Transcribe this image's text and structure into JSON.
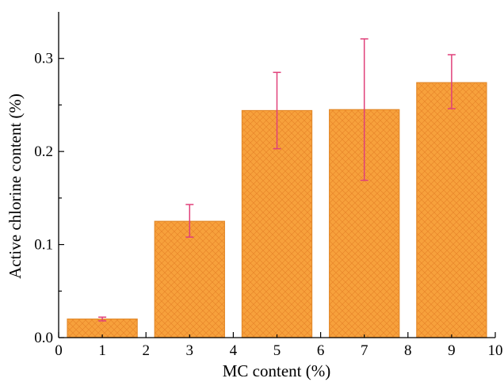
{
  "chart_data": {
    "type": "bar",
    "title": "",
    "xlabel": "MC content (%)",
    "ylabel": "Active chlorine content (%)",
    "xlim": [
      0,
      10
    ],
    "ylim": [
      0,
      0.35
    ],
    "xticks": [
      0,
      1,
      2,
      3,
      4,
      5,
      6,
      7,
      8,
      9,
      10
    ],
    "xtick_labels": [
      "0",
      "1",
      "2",
      "3",
      "4",
      "5",
      "6",
      "7",
      "8",
      "9",
      "10"
    ],
    "yticks": [
      0.0,
      0.1,
      0.2,
      0.3
    ],
    "ytick_labels": [
      "0.0",
      "0.1",
      "0.2",
      "0.3"
    ],
    "x": [
      1,
      3,
      5,
      7,
      9
    ],
    "values": [
      0.02,
      0.125,
      0.244,
      0.245,
      0.274
    ],
    "error_low": [
      0.018,
      0.108,
      0.203,
      0.169,
      0.246
    ],
    "error_high": [
      0.022,
      0.143,
      0.285,
      0.321,
      0.304
    ],
    "bar_width": 1.6,
    "grid": false,
    "legend": "none",
    "colors": {
      "bar_fill": "#f7a13c",
      "bar_hatch": "#e8862a",
      "bar_edge": "#e38a2c",
      "error_bar": "#e0407a",
      "axis": "#000000"
    }
  }
}
